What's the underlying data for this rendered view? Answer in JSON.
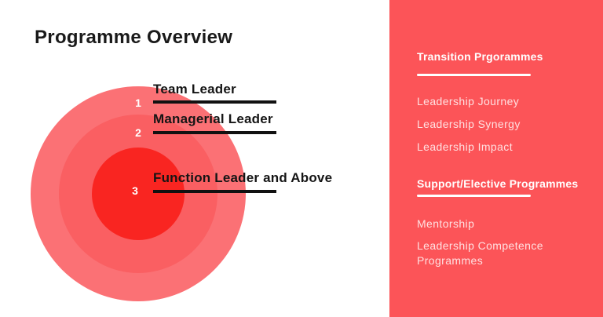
{
  "title": "Programme Overview",
  "diagram": {
    "levels": [
      {
        "number": "1",
        "label": "Team Leader"
      },
      {
        "number": "2",
        "label": "Managerial Leader"
      },
      {
        "number": "3",
        "label": "Function Leader and Above"
      }
    ],
    "colors": {
      "ring_outer": "#FB7175",
      "ring_middle": "#FA5F62",
      "ring_inner": "#F92521",
      "callout_line": "#111111"
    }
  },
  "sidebar": {
    "background": "#FC5458",
    "sections": [
      {
        "heading": "Transition Prgorammes",
        "items": [
          "Leadership Journey",
          "Leadership Synergy",
          "Leadership Impact"
        ]
      },
      {
        "heading": "Support/Elective Programmes",
        "items": [
          "Mentorship",
          "Leadership Competence Programmes"
        ]
      }
    ]
  }
}
